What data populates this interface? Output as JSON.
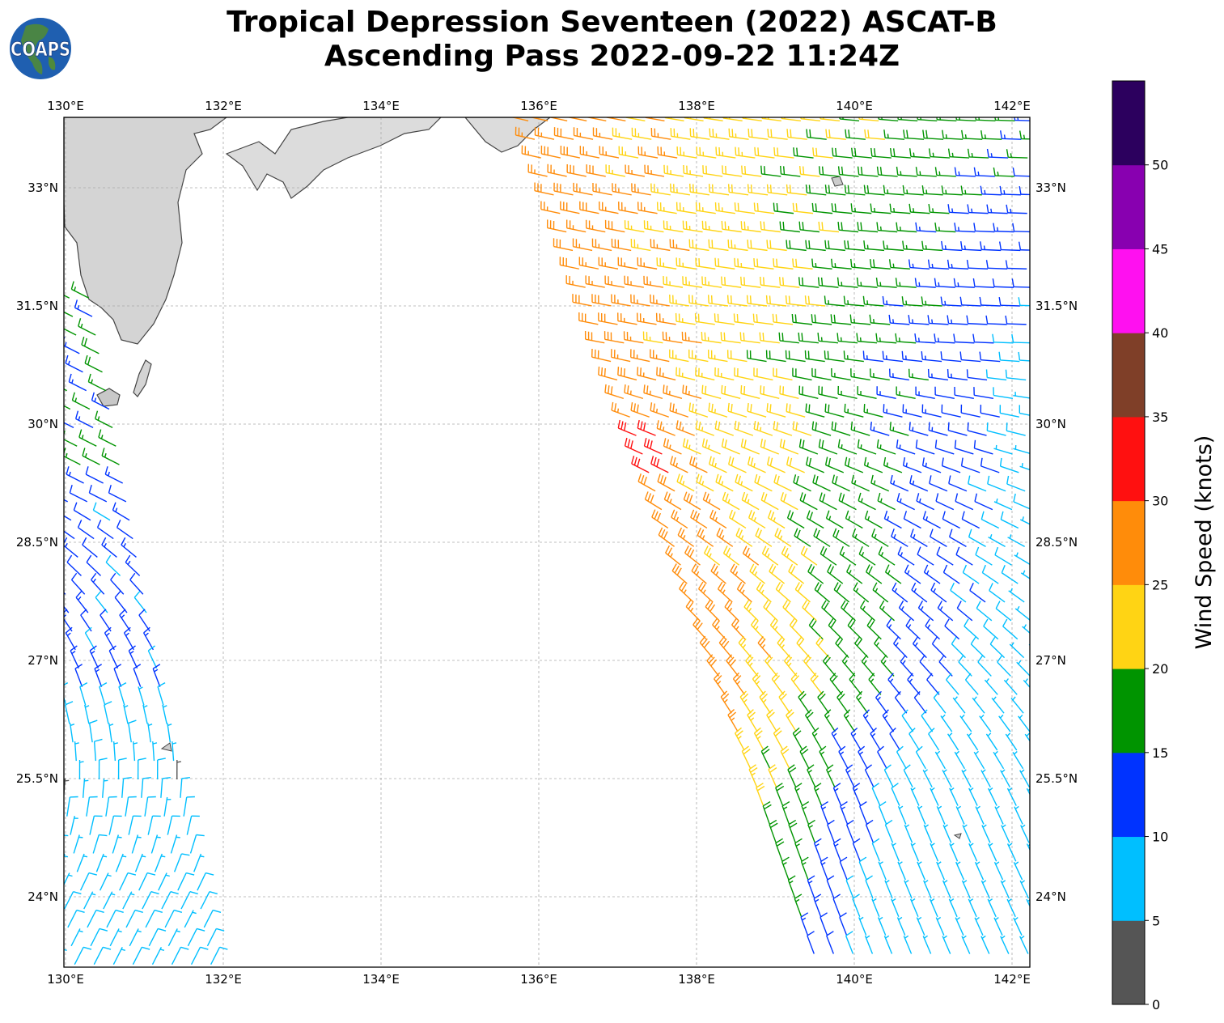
{
  "header": {
    "title_line1": "Tropical Depression Seventeen (2022) ASCAT-B",
    "title_line2": "Ascending Pass 2022-09-22 11:24Z",
    "logo_text": "COAPS"
  },
  "map": {
    "lon_range": [
      130,
      142.25
    ],
    "lat_range": [
      23.1,
      33.9
    ],
    "lon_ticks": [
      {
        "value": 130,
        "label": "130°E"
      },
      {
        "value": 132,
        "label": "132°E"
      },
      {
        "value": 134,
        "label": "134°E"
      },
      {
        "value": 136,
        "label": "136°E"
      },
      {
        "value": 138,
        "label": "138°E"
      },
      {
        "value": 140,
        "label": "140°E"
      },
      {
        "value": 142,
        "label": "142°E"
      }
    ],
    "lat_ticks": [
      {
        "value": 33,
        "label": "33°N"
      },
      {
        "value": 31.5,
        "label": "31.5°N"
      },
      {
        "value": 30,
        "label": "30°N"
      },
      {
        "value": 28.5,
        "label": "28.5°N"
      },
      {
        "value": 27,
        "label": "27°N"
      },
      {
        "value": 25.5,
        "label": "25.5°N"
      },
      {
        "value": 24,
        "label": "24°N"
      }
    ]
  },
  "colorbar": {
    "label": "Wind Speed (knots)",
    "ticks": [
      "0",
      "5",
      "10",
      "15",
      "20",
      "25",
      "30",
      "35",
      "40",
      "45",
      "50"
    ],
    "bins": [
      {
        "min": 0,
        "max": 5,
        "color": "#555555"
      },
      {
        "min": 5,
        "max": 10,
        "color": "#00bfff"
      },
      {
        "min": 10,
        "max": 15,
        "color": "#0033ff"
      },
      {
        "min": 15,
        "max": 20,
        "color": "#009400"
      },
      {
        "min": 20,
        "max": 25,
        "color": "#ffd414"
      },
      {
        "min": 25,
        "max": 30,
        "color": "#ff8c0a"
      },
      {
        "min": 30,
        "max": 35,
        "color": "#ff1010"
      },
      {
        "min": 35,
        "max": 40,
        "color": "#7f3f28"
      },
      {
        "min": 40,
        "max": 45,
        "color": "#ff10f0"
      },
      {
        "min": 45,
        "max": 50,
        "color": "#8800b0"
      },
      {
        "min": 50,
        "max": 55,
        "color": "#2c005e"
      }
    ]
  }
}
